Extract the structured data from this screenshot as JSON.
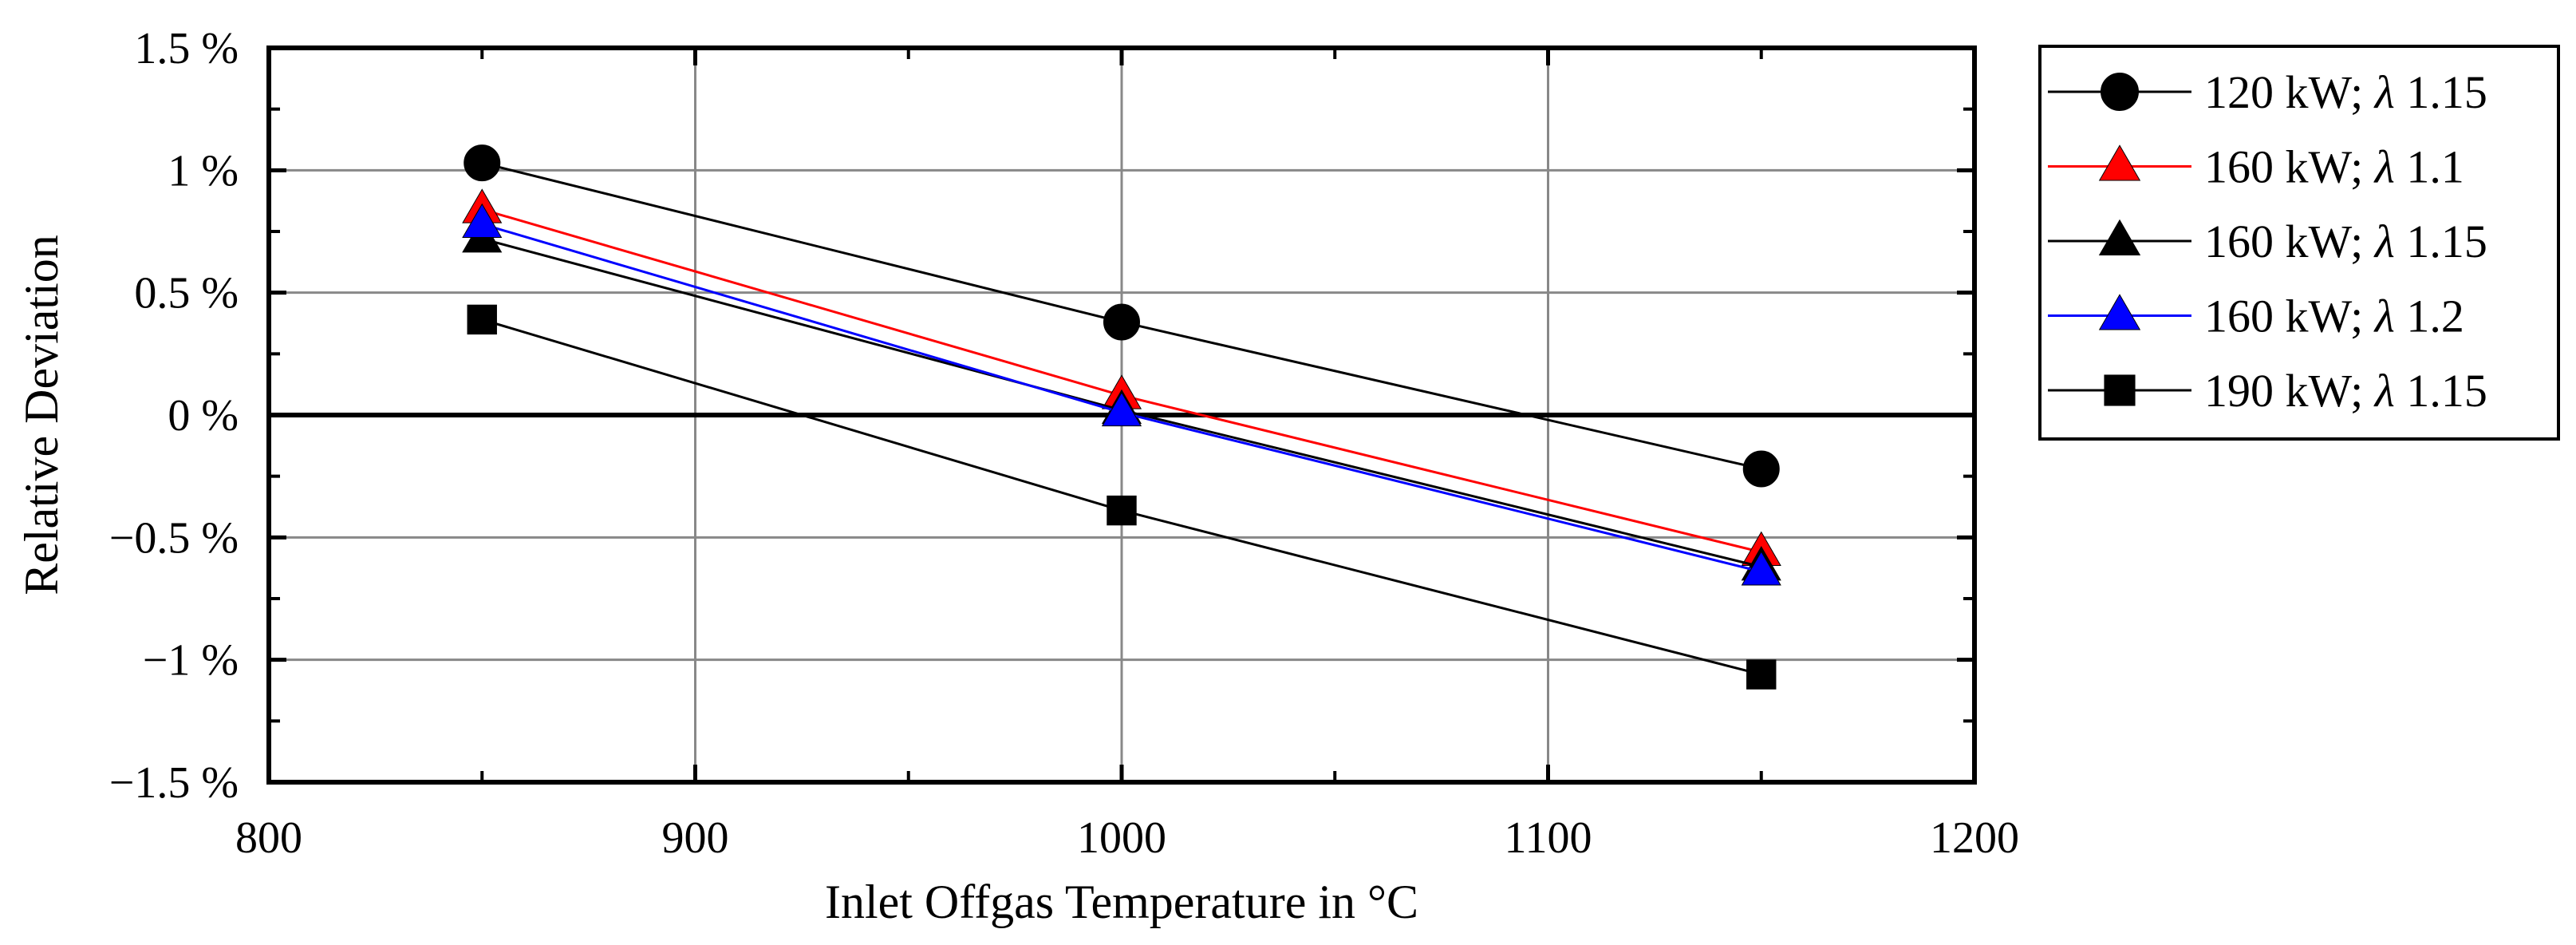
{
  "chart_data": {
    "type": "line",
    "title": "",
    "xlabel": "Inlet Offgas Temperature in °C",
    "ylabel": "Relative Deviation",
    "xlim": [
      800,
      1200
    ],
    "ylim": [
      -1.5,
      1.5
    ],
    "x_ticks": [
      800,
      900,
      1000,
      1100,
      1200
    ],
    "x_tick_labels": [
      "800",
      "900",
      "1000",
      "1100",
      "1200"
    ],
    "y_ticks": [
      1.5,
      1,
      0.5,
      0,
      -0.5,
      -1,
      -1.5
    ],
    "y_tick_labels": [
      "1.5 %",
      "1 %",
      "0.5 %",
      "0 %",
      "−0.5 %",
      "−1 %",
      "−1.5 %"
    ],
    "grid": true,
    "legend_position": "right",
    "x": [
      850,
      1000,
      1150
    ],
    "series": [
      {
        "name": "120 kW; λ 1.15",
        "power": "120 kW;",
        "lambda": "1.15",
        "values": [
          1.03,
          0.38,
          -0.22
        ],
        "color": "#000000",
        "marker": "circle"
      },
      {
        "name": "160 kW; λ 1.1",
        "power": "160 kW;",
        "lambda": "1.1",
        "values": [
          0.84,
          0.08,
          -0.56
        ],
        "color": "#ff0000",
        "marker": "triangle"
      },
      {
        "name": "160 kW; λ 1.15",
        "power": "160 kW;",
        "lambda": "1.15",
        "values": [
          0.72,
          0.02,
          -0.62
        ],
        "color": "#000000",
        "marker": "triangle"
      },
      {
        "name": "160 kW; λ 1.2",
        "power": "160 kW;",
        "lambda": "1.2",
        "values": [
          0.78,
          0.01,
          -0.64
        ],
        "color": "#0000ff",
        "marker": "triangle"
      },
      {
        "name": "190 kW; λ 1.15",
        "power": "190 kW;",
        "lambda": "1.15",
        "values": [
          0.39,
          -0.39,
          -1.06
        ],
        "color": "#000000",
        "marker": "square"
      }
    ]
  }
}
